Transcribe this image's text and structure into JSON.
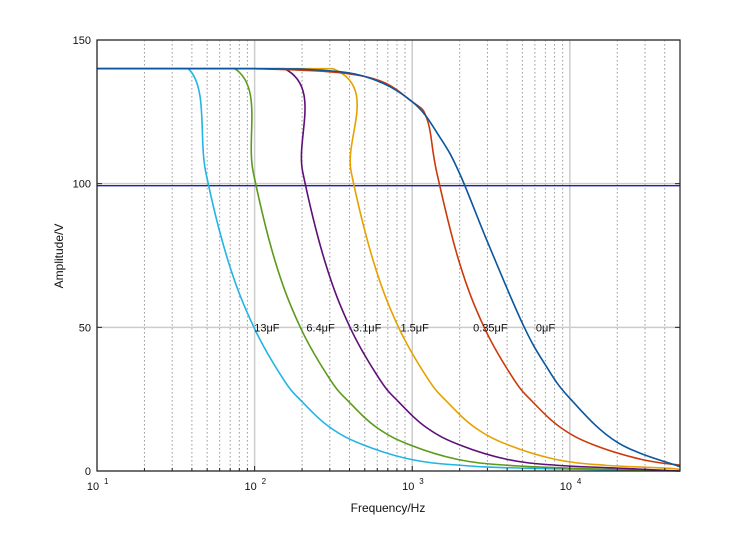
{
  "chart_data": {
    "type": "line",
    "xlabel": "Frequency/Hz",
    "ylabel": "Amplitude/V",
    "xscale": "log",
    "xlim": [
      10,
      50000
    ],
    "ylim": [
      0,
      150
    ],
    "yticks": [
      0,
      50,
      100,
      150
    ],
    "xticks": [
      {
        "value": 10,
        "base": "10",
        "exp": "1"
      },
      {
        "value": 100,
        "base": "10",
        "exp": "2"
      },
      {
        "value": 1000,
        "base": "10",
        "exp": "3"
      },
      {
        "value": 10000,
        "base": "10",
        "exp": "4"
      }
    ],
    "grid": {
      "major": "solid",
      "minor_x": "dotted"
    },
    "reference_line": {
      "y": 99.3,
      "color": "#1c1cc8"
    },
    "series": [
      {
        "name": "13μF",
        "color": "#22b4e4",
        "label_at": [
          98,
          50
        ],
        "x": [
          10,
          38,
          49,
          68,
          99,
          152,
          201,
          304,
          494,
          988,
          2014,
          4940,
          50000
        ],
        "y": [
          140,
          140,
          104,
          73,
          50,
          32,
          24,
          15,
          9,
          4,
          2,
          1,
          0
        ]
      },
      {
        "name": "6.4μF",
        "color": "#5b9b1b",
        "label_at": [
          210,
          50
        ],
        "x": [
          10,
          75,
          98,
          135,
          195,
          300,
          398,
          600,
          975,
          1950,
          3975,
          9750,
          50000
        ],
        "y": [
          140,
          140,
          104,
          73,
          50,
          32,
          24,
          15,
          9,
          4,
          2,
          1,
          0
        ]
      },
      {
        "name": "3.1μF",
        "color": "#5e0f78",
        "label_at": [
          415,
          50
        ],
        "x": [
          10,
          155,
          202,
          279,
          403,
          620,
          822,
          1240,
          2015,
          4030,
          8215,
          20150,
          50000
        ],
        "y": [
          140,
          140,
          104,
          73,
          50,
          32,
          24,
          15,
          9,
          4,
          2,
          1,
          0
        ]
      },
      {
        "name": "1.5μF",
        "color": "#e6a100",
        "label_at": [
          830,
          50
        ],
        "x": [
          10,
          315,
          410,
          567,
          819,
          1260,
          1670,
          2520,
          4095,
          8190,
          16700,
          40950,
          50000
        ],
        "y": [
          140,
          140,
          104,
          73,
          50,
          32,
          24,
          15,
          9,
          4,
          2,
          1,
          0.5
        ]
      },
      {
        "name": "0.35μF",
        "color": "#cc3a0a",
        "label_at": [
          2400,
          50
        ],
        "x": [
          10,
          100,
          500,
          1000,
          1250,
          1430,
          1980,
          2860,
          4400,
          5830,
          8800,
          14300,
          28600,
          50000
        ],
        "y": [
          140,
          140,
          137.3,
          128.5,
          122,
          104,
          73,
          50,
          32,
          24,
          15,
          9,
          4,
          2
        ]
      },
      {
        "name": "0μF",
        "color": "#0a56a0",
        "label_at": [
          6000,
          50
        ],
        "x": [
          10,
          100,
          200,
          500,
          1000,
          1500,
          2000,
          3000,
          5000,
          7000,
          10000,
          20000,
          50000
        ],
        "y": [
          140,
          140,
          139.9,
          137.3,
          128.5,
          116.1,
          103.5,
          79.8,
          51.4,
          36.9,
          25.3,
          10,
          1.5
        ]
      }
    ]
  }
}
